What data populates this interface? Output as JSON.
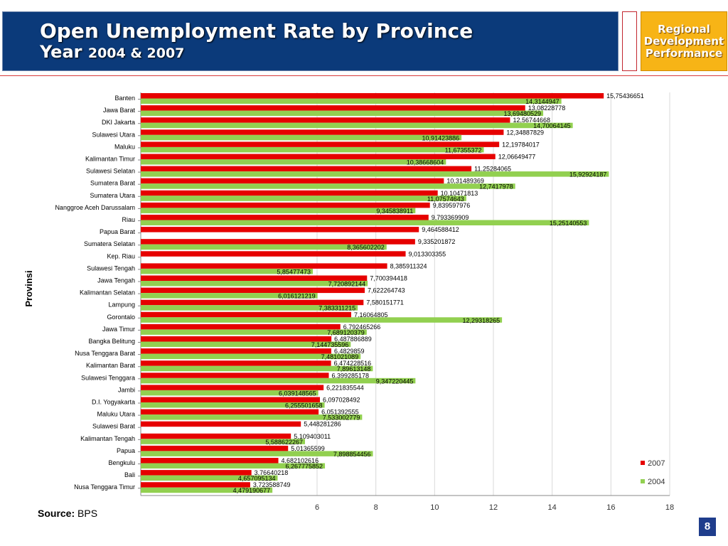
{
  "header": {
    "title_line1": "Open Unemployment Rate by Province",
    "title_line2_word": "Year",
    "title_line2_years": "2004 & 2007",
    "badge_line1": "Regional",
    "badge_line2": "Development",
    "badge_line3": "Performance"
  },
  "footer": {
    "source_label": "Source:",
    "source_value": "BPS",
    "page_number": "8"
  },
  "colors": {
    "series_2007": "#e60000",
    "series_2004": "#92d050",
    "header_bg": "#0b3a7a",
    "badge_bg": "#f7b416"
  },
  "chart_data": {
    "type": "bar",
    "orientation": "horizontal",
    "title": "",
    "xlabel": "",
    "ylabel": "Provinsi",
    "xlim": [
      0,
      18
    ],
    "xticks": [
      6,
      8,
      10,
      12,
      14,
      16,
      18
    ],
    "grid": true,
    "legend_position": "bottom-right",
    "categories": [
      "Banten",
      "Jawa Barat",
      "DKI Jakarta",
      "Sulawesi Utara",
      "Maluku",
      "Kalimantan Timur",
      "Sulawesi Selatan",
      "Sumatera Barat",
      "Sumatera Utara",
      "Nanggroe Aceh Darussalam",
      "Riau",
      "Papua Barat",
      "Sumatera Selatan",
      "Kep. Riau",
      "Sulawesi Tengah",
      "Jawa Tengah",
      "Kalimantan Selatan",
      "Lampung",
      "Gorontalo",
      "Jawa Timur",
      "Bangka Belitung",
      "Nusa Tenggara Barat",
      "Kalimantan Barat",
      "Sulawesi Tenggara",
      "Jambi",
      "D.I. Yogyakarta",
      "Maluku Utara",
      "Sulawesi Barat",
      "Kalimantan Tengah",
      "Papua",
      "Bengkulu",
      "Bali",
      "Nusa Tenggara Timur"
    ],
    "series": [
      {
        "name": "2007",
        "values": [
          15.75436651,
          13.08228778,
          12.56744668,
          12.34887829,
          12.19784017,
          12.06649477,
          11.25284065,
          10.31489369,
          10.10471813,
          9.839597976,
          9.793369909,
          9.464588412,
          9.335201872,
          9.013303355,
          8.385911324,
          7.700394418,
          7.622264743,
          7.580151771,
          7.16064805,
          6.792465266,
          6.487886889,
          6.4829859,
          6.474228516,
          6.399285178,
          6.221835544,
          6.097028492,
          6.051392555,
          5.448281286,
          5.109403011,
          5.01365599,
          4.682102616,
          3.76640218,
          3.723588749
        ],
        "labels": [
          "15,75436651",
          "13,08228778",
          "12,56744668",
          "12,34887829",
          "12,19784017",
          "12,06649477",
          "11,25284065",
          "10,31489369",
          "10,10471813",
          "9,839597976",
          "9,793369909",
          "9,464588412",
          "9,335201872",
          "9,013303355",
          "8,385911324",
          "7,700394418",
          "7,622264743",
          "7,580151771",
          "7,16064805",
          "6,792465266",
          "6,487886889",
          "6,4829859",
          "6,474228516",
          "6,399285178",
          "6,221835544",
          "6,097028492",
          "6,051392555",
          "5,448281286",
          "5,109403011",
          "5,01365599",
          "4,682102616",
          "3,76640218",
          "3,723588749"
        ]
      },
      {
        "name": "2004",
        "values": [
          14.3144947,
          13.69480529,
          14.70064145,
          10.91423886,
          11.67355372,
          10.38668604,
          15.92924187,
          12.7417978,
          11.07574643,
          9.345838911,
          15.25140553,
          null,
          8.365602202,
          null,
          5.85477473,
          7.720892144,
          6.016121219,
          7.383311215,
          12.29318265,
          7.689120379,
          7.144735596,
          7.481021089,
          7.89613148,
          9.347220445,
          6.039148565,
          6.255501658,
          7.533002779,
          null,
          5.588622267,
          7.898854456,
          6.267775852,
          4.657095134,
          4.479190677
        ],
        "labels": [
          "14,3144947",
          "13,69480529",
          "14,70064145",
          "10,91423886",
          "11,67355372",
          "10,38668604",
          "15,92924187",
          "12,7417978",
          "11,07574643",
          "9,345838911",
          "15,25140553",
          "",
          "8,365602202",
          "",
          "5,85477473",
          "7,720892144",
          "6,016121219",
          "7,383311215",
          "12,29318265",
          "7,689120379",
          "7,144735596",
          "7,481021089",
          "7,89613148",
          "9,347220445",
          "6,039148565",
          "6,255501658",
          "7,533002779",
          "",
          "5,588622267",
          "7,898854456",
          "6,267775852",
          "4,657095134",
          "4,479190677"
        ]
      }
    ]
  }
}
